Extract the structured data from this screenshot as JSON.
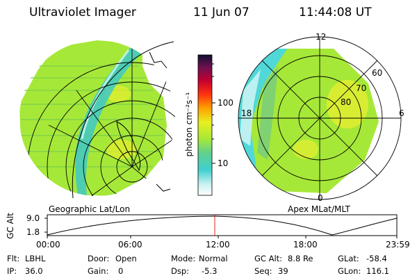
{
  "header": {
    "title": "Ultraviolet Imager",
    "date": "11 Jun 07",
    "time": "11:44:08 UT"
  },
  "colorbar": {
    "unit_label": "photon cm⁻²s⁻¹",
    "ticks": [
      "100",
      "10"
    ]
  },
  "left_panel": {
    "label": "Geographic Lat/Lon"
  },
  "right_panel": {
    "label": "Apex MLat/MLT",
    "mlt_labels": [
      "12",
      "18",
      "6",
      "0"
    ],
    "lat_labels": [
      "60",
      "70",
      "80"
    ]
  },
  "altitude_plot": {
    "ylabel": "GC Alt",
    "yticks": [
      "9.0",
      "1.8"
    ],
    "xticks": [
      "00:00",
      "06:00",
      "12:00",
      "18:00",
      "23:59"
    ],
    "marker_time": "11:44"
  },
  "status": {
    "row1": [
      {
        "label": "Flt:",
        "value": "LBHL"
      },
      {
        "label": "Door:",
        "value": "Open"
      },
      {
        "label": "Mode:",
        "value": "Normal"
      },
      {
        "label": "GC Alt:",
        "value": "8.8 Re"
      },
      {
        "label": "GLat:",
        "value": "-58.4"
      }
    ],
    "row2": [
      {
        "label": "IP:",
        "value": "36.0"
      },
      {
        "label": "Gain:",
        "value": "0"
      },
      {
        "label": "Dsp:",
        "value": "-5.3"
      },
      {
        "label": "Seq:",
        "value": "39"
      },
      {
        "label": "GLon:",
        "value": "116.1"
      }
    ]
  },
  "colors": {
    "accent_marker": "#e02020",
    "image_base": "#a6e838",
    "image_cyan": "#50d8d8"
  }
}
